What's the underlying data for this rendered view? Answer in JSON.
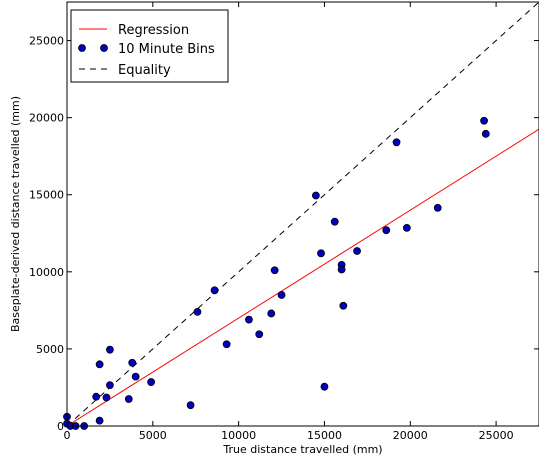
{
  "chart_data": {
    "type": "scatter",
    "xlabel": "True distance travelled (mm)",
    "ylabel": "Baseplate-derived distance travelled (mm)",
    "xlim": [
      0,
      27500
    ],
    "ylim": [
      0,
      27500
    ],
    "x_ticks": [
      0,
      5000,
      10000,
      15000,
      20000,
      25000
    ],
    "y_ticks": [
      0,
      5000,
      10000,
      15000,
      20000,
      25000
    ],
    "grid": false,
    "legend_position": "top-left",
    "colors": {
      "regression": "#ff0000",
      "points_fill": "#0000bf",
      "points_edge": "#000000",
      "equality": "#000000"
    },
    "series": [
      {
        "name": "Regression",
        "kind": "line",
        "style": "solid",
        "points": [
          [
            0,
            0
          ],
          [
            27500,
            19250
          ]
        ]
      },
      {
        "name": "10 Minute Bins",
        "kind": "scatter",
        "points": [
          [
            0,
            600
          ],
          [
            0,
            150
          ],
          [
            200,
            0
          ],
          [
            500,
            0
          ],
          [
            1000,
            0
          ],
          [
            1700,
            1900
          ],
          [
            1900,
            350
          ],
          [
            1900,
            4000
          ],
          [
            2300,
            1850
          ],
          [
            2500,
            2650
          ],
          [
            2500,
            4950
          ],
          [
            3600,
            1750
          ],
          [
            3800,
            4100
          ],
          [
            4000,
            3200
          ],
          [
            4900,
            2850
          ],
          [
            7200,
            1350
          ],
          [
            7600,
            7400
          ],
          [
            8600,
            8800
          ],
          [
            9300,
            5300
          ],
          [
            10600,
            6900
          ],
          [
            11200,
            5950
          ],
          [
            11900,
            7300
          ],
          [
            12100,
            10100
          ],
          [
            12500,
            8500
          ],
          [
            14500,
            14950
          ],
          [
            14800,
            11200
          ],
          [
            15000,
            2550
          ],
          [
            15600,
            13250
          ],
          [
            16000,
            10450
          ],
          [
            16000,
            10150
          ],
          [
            16100,
            7800
          ],
          [
            16900,
            11350
          ],
          [
            18600,
            12700
          ],
          [
            19200,
            18400
          ],
          [
            19800,
            12850
          ],
          [
            21600,
            14150
          ],
          [
            24300,
            19800
          ],
          [
            24400,
            18950
          ]
        ]
      },
      {
        "name": "Equality",
        "kind": "line",
        "style": "dashed",
        "points": [
          [
            0,
            0
          ],
          [
            27500,
            27500
          ]
        ]
      }
    ]
  }
}
